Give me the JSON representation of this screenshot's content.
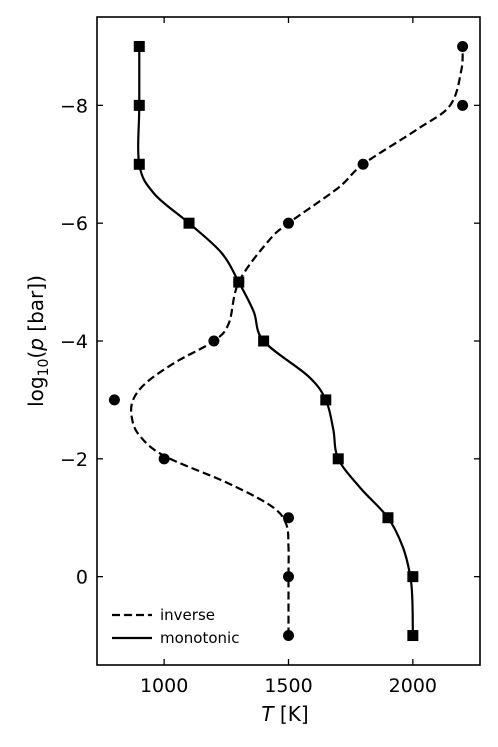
{
  "chart_data": {
    "type": "line",
    "xlabel": {
      "italic": "T",
      "rest": " [K]"
    },
    "ylabel": {
      "pre": "log",
      "sub": "10",
      "open": "(",
      "italic": "p",
      "rest": " [bar])"
    },
    "xlim": [
      730,
      2270
    ],
    "ylim": [
      1.5,
      -9.5
    ],
    "y_inverted": true,
    "x_ticks": [
      1000,
      1500,
      2000
    ],
    "x_tick_labels": [
      "1000",
      "1500",
      "2000"
    ],
    "y_ticks": [
      -8,
      -6,
      -4,
      -2,
      0
    ],
    "y_tick_labels": [
      "−8",
      "−6",
      "−4",
      "−2",
      "0"
    ],
    "ticks_direction": "in",
    "ticks_on_all_sides": true,
    "grid": false,
    "legend": {
      "position": "bottom-left",
      "entries": [
        {
          "label": "inverse",
          "style": "dashed"
        },
        {
          "label": "monotonic",
          "style": "solid"
        }
      ]
    },
    "series": [
      {
        "name": "inverse",
        "line_style": "dashed",
        "marker": "circle",
        "color": "#000000",
        "points": [
          [
            1500,
            1
          ],
          [
            1500,
            0
          ],
          [
            1500,
            -1
          ],
          [
            1000,
            -2
          ],
          [
            800,
            -3
          ],
          [
            1200,
            -4
          ],
          [
            1300,
            -5
          ],
          [
            1500,
            -6
          ],
          [
            1800,
            -7
          ],
          [
            2200,
            -8
          ],
          [
            2200,
            -9
          ]
        ],
        "curve": [
          [
            1500,
            1
          ],
          [
            1500,
            0
          ],
          [
            1500,
            -0.5
          ],
          [
            1490,
            -0.9
          ],
          [
            1430,
            -1.2
          ],
          [
            1250,
            -1.6
          ],
          [
            1000,
            -2.05
          ],
          [
            900,
            -2.4
          ],
          [
            870,
            -2.7
          ],
          [
            875,
            -3.0
          ],
          [
            930,
            -3.3
          ],
          [
            1050,
            -3.65
          ],
          [
            1200,
            -4.0
          ],
          [
            1260,
            -4.3
          ],
          [
            1300,
            -5.0
          ],
          [
            1420,
            -5.7
          ],
          [
            1500,
            -6.0
          ],
          [
            1700,
            -6.6
          ],
          [
            1800,
            -7.0
          ],
          [
            2020,
            -7.6
          ],
          [
            2150,
            -8.0
          ],
          [
            2195,
            -8.6
          ],
          [
            2200,
            -9
          ]
        ]
      },
      {
        "name": "monotonic",
        "line_style": "solid",
        "marker": "square",
        "color": "#000000",
        "points": [
          [
            2000,
            1
          ],
          [
            2000,
            0
          ],
          [
            1900,
            -1
          ],
          [
            1700,
            -2
          ],
          [
            1650,
            -3
          ],
          [
            1400,
            -4
          ],
          [
            1300,
            -5
          ],
          [
            1100,
            -6
          ],
          [
            900,
            -7
          ],
          [
            900,
            -8
          ],
          [
            900,
            -9
          ]
        ],
        "curve": [
          [
            2000,
            1
          ],
          [
            1998,
            0.4
          ],
          [
            1990,
            0
          ],
          [
            1960,
            -0.5
          ],
          [
            1900,
            -1
          ],
          [
            1790,
            -1.5
          ],
          [
            1700,
            -2
          ],
          [
            1680,
            -2.5
          ],
          [
            1650,
            -3
          ],
          [
            1580,
            -3.4
          ],
          [
            1400,
            -4
          ],
          [
            1360,
            -4.5
          ],
          [
            1300,
            -5
          ],
          [
            1230,
            -5.5
          ],
          [
            1100,
            -6
          ],
          [
            960,
            -6.5
          ],
          [
            900,
            -7
          ],
          [
            900,
            -8
          ],
          [
            900,
            -9
          ]
        ]
      }
    ]
  }
}
